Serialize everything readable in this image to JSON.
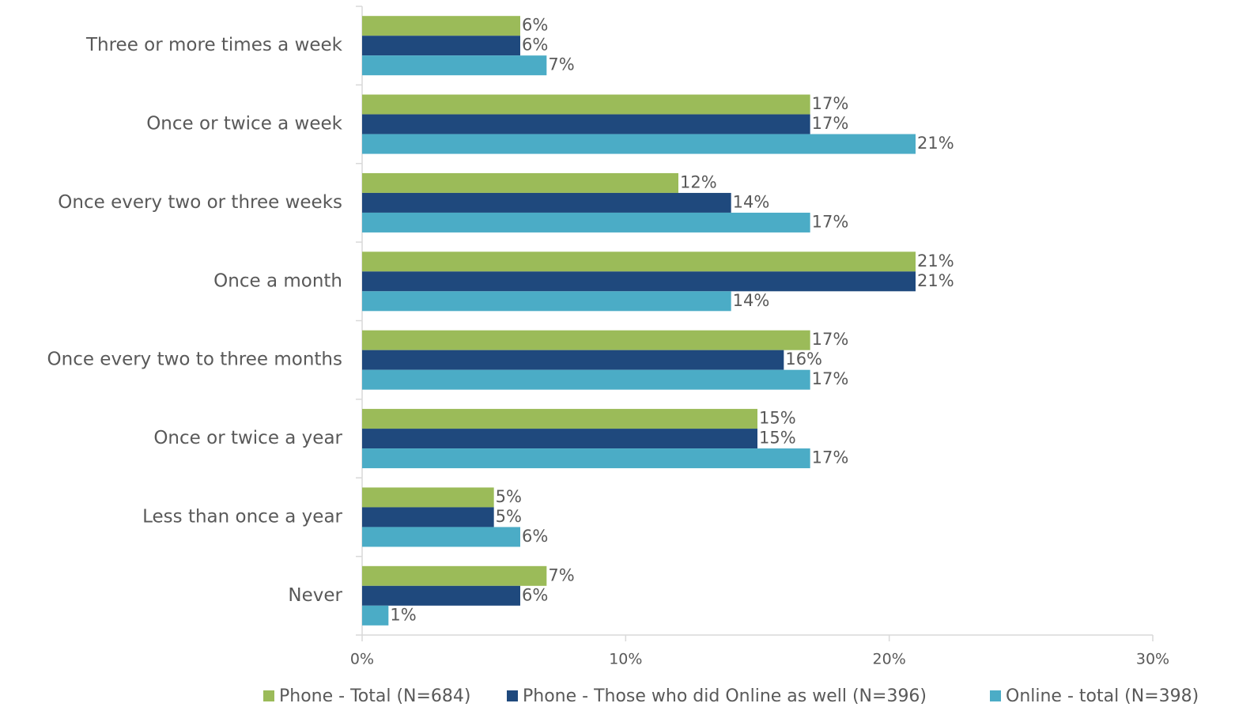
{
  "chart_data": {
    "type": "bar",
    "orientation": "horizontal",
    "categories": [
      "Three or more times a week",
      "Once or twice a week",
      "Once every two or three weeks",
      "Once a month",
      "Once every two to three months",
      "Once or twice a year",
      "Less than once a year",
      "Never"
    ],
    "series": [
      {
        "name": "Phone - Total (N=684)",
        "color": "#9bbb59",
        "values": [
          6,
          17,
          12,
          21,
          17,
          15,
          5,
          7
        ],
        "value_labels": [
          "6%",
          "17%",
          "12%",
          "21%",
          "17%",
          "15%",
          "5%",
          "7%"
        ]
      },
      {
        "name": "Phone - Those who did Online as well (N=396)",
        "color": "#1f497d",
        "values": [
          6,
          17,
          14,
          21,
          16,
          15,
          5,
          6
        ],
        "value_labels": [
          "6%",
          "17%",
          "14%",
          "21%",
          "16%",
          "15%",
          "5%",
          "6%"
        ]
      },
      {
        "name": "Online - total (N=398)",
        "color": "#4bacc6",
        "values": [
          7,
          21,
          17,
          14,
          17,
          17,
          6,
          1
        ],
        "value_labels": [
          "7%",
          "21%",
          "17%",
          "14%",
          "17%",
          "17%",
          "6%",
          "1%"
        ]
      }
    ],
    "xlim": [
      0,
      30
    ],
    "xticks": [
      {
        "value": 0,
        "label": "0%"
      },
      {
        "value": 10,
        "label": "10%"
      },
      {
        "value": 20,
        "label": "20%"
      },
      {
        "value": 30,
        "label": "30%"
      }
    ],
    "legend": "bottom"
  }
}
